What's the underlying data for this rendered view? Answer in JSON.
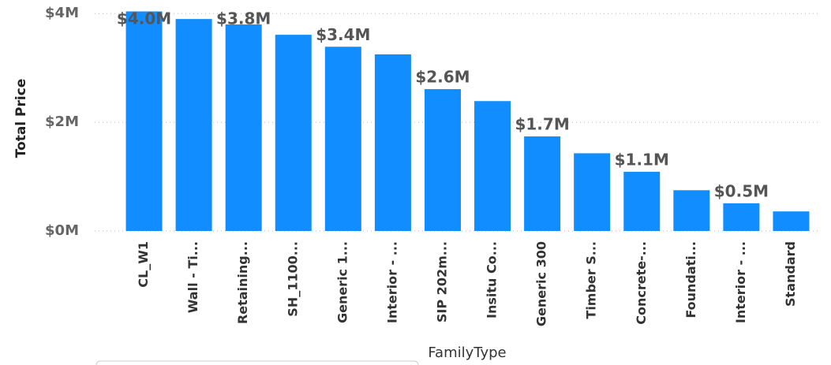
{
  "chart_data": {
    "type": "bar",
    "x_label": "FamilyType",
    "y_label": "Total Price",
    "categories": [
      "CL_W1",
      "Wall - Ti...",
      "Retaining...",
      "SH_1100...",
      "Generic 1...",
      "Interior - ...",
      "SIP 202m...",
      "Insitu Co...",
      "Generic 300",
      "Timber S...",
      "Concrete-...",
      "Foundati...",
      "Interior - ...",
      "Standard"
    ],
    "values": [
      4.04,
      3.9,
      3.8,
      3.61,
      3.39,
      3.25,
      2.61,
      2.39,
      1.74,
      1.43,
      1.09,
      0.75,
      0.51,
      0.36
    ],
    "value_labels": [
      "$4.0M",
      null,
      "$3.8M",
      null,
      "$3.4M",
      null,
      "$2.6M",
      null,
      "$1.7M",
      null,
      "$1.1M",
      null,
      "$0.5M",
      null
    ],
    "color": "#118dff",
    "ylim": [
      0,
      4.25
    ],
    "yticks": [
      {
        "value": 0,
        "label": "$0M"
      },
      {
        "value": 2,
        "label": "$2M"
      },
      {
        "value": 4,
        "label": "$4M"
      }
    ],
    "grid": true
  }
}
